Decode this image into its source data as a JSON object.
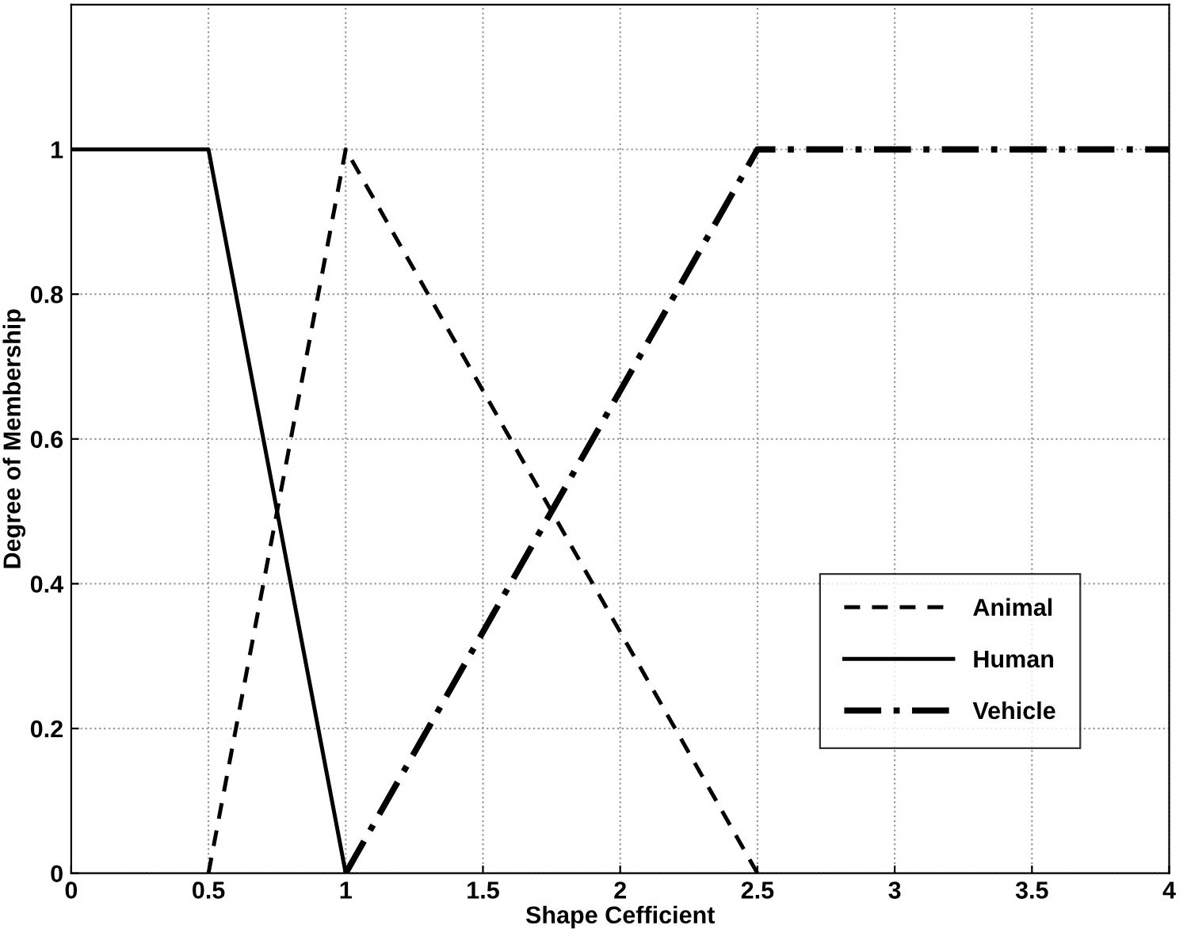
{
  "chart_data": {
    "type": "line",
    "xlabel": "Shape Cefficient",
    "ylabel": "Degree of Membership",
    "xlim": [
      0,
      4
    ],
    "ylim": [
      0,
      1.2
    ],
    "xticks": [
      0,
      0.5,
      1,
      1.5,
      2,
      2.5,
      3,
      3.5,
      4
    ],
    "yticks": [
      0,
      0.2,
      0.4,
      0.6,
      0.8,
      1
    ],
    "grid": true,
    "legend": "bottom right",
    "marker": "none",
    "series": [
      {
        "name": "Animal",
        "color": "#000000",
        "line_style": "dashed",
        "x": [
          0.5,
          1,
          2.5
        ],
        "values": [
          0,
          1,
          0
        ]
      },
      {
        "name": "Human",
        "color": "#000000",
        "line_style": "solid",
        "x": [
          0,
          0.5,
          1
        ],
        "values": [
          1,
          1,
          0
        ]
      },
      {
        "name": "Vehicle",
        "color": "#000000",
        "line_style": "dashdot",
        "x": [
          1,
          2.5,
          4
        ],
        "values": [
          0,
          1,
          1
        ]
      }
    ]
  }
}
